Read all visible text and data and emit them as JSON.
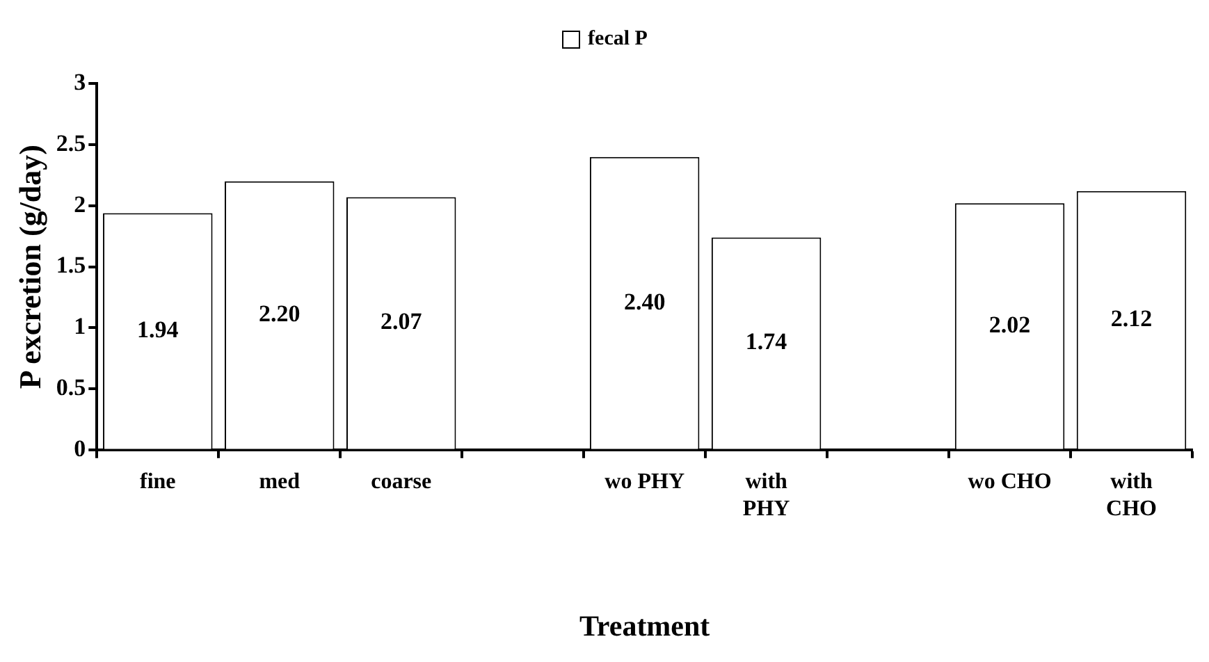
{
  "chart_data": {
    "type": "bar",
    "xlabel": "Treatment",
    "ylabel": "P excretion (g/day)",
    "categories": [
      "fine",
      "med",
      "coarse",
      null,
      "wo PHY",
      "with PHY",
      null,
      "wo CHO",
      "with CHO"
    ],
    "series": [
      {
        "name": "fecal P",
        "color": "#ffffff",
        "values": [
          1.94,
          2.2,
          2.07,
          null,
          2.4,
          1.74,
          null,
          2.02,
          2.12
        ],
        "value_labels": [
          "1.94",
          "2.20",
          "2.07",
          null,
          "2.40",
          "1.74",
          null,
          "2.02",
          "2.12"
        ]
      }
    ],
    "ylim": [
      0,
      3
    ],
    "yticks": [
      0,
      0.5,
      1,
      1.5,
      2,
      2.5,
      3
    ],
    "grid": false,
    "legend": "top"
  }
}
